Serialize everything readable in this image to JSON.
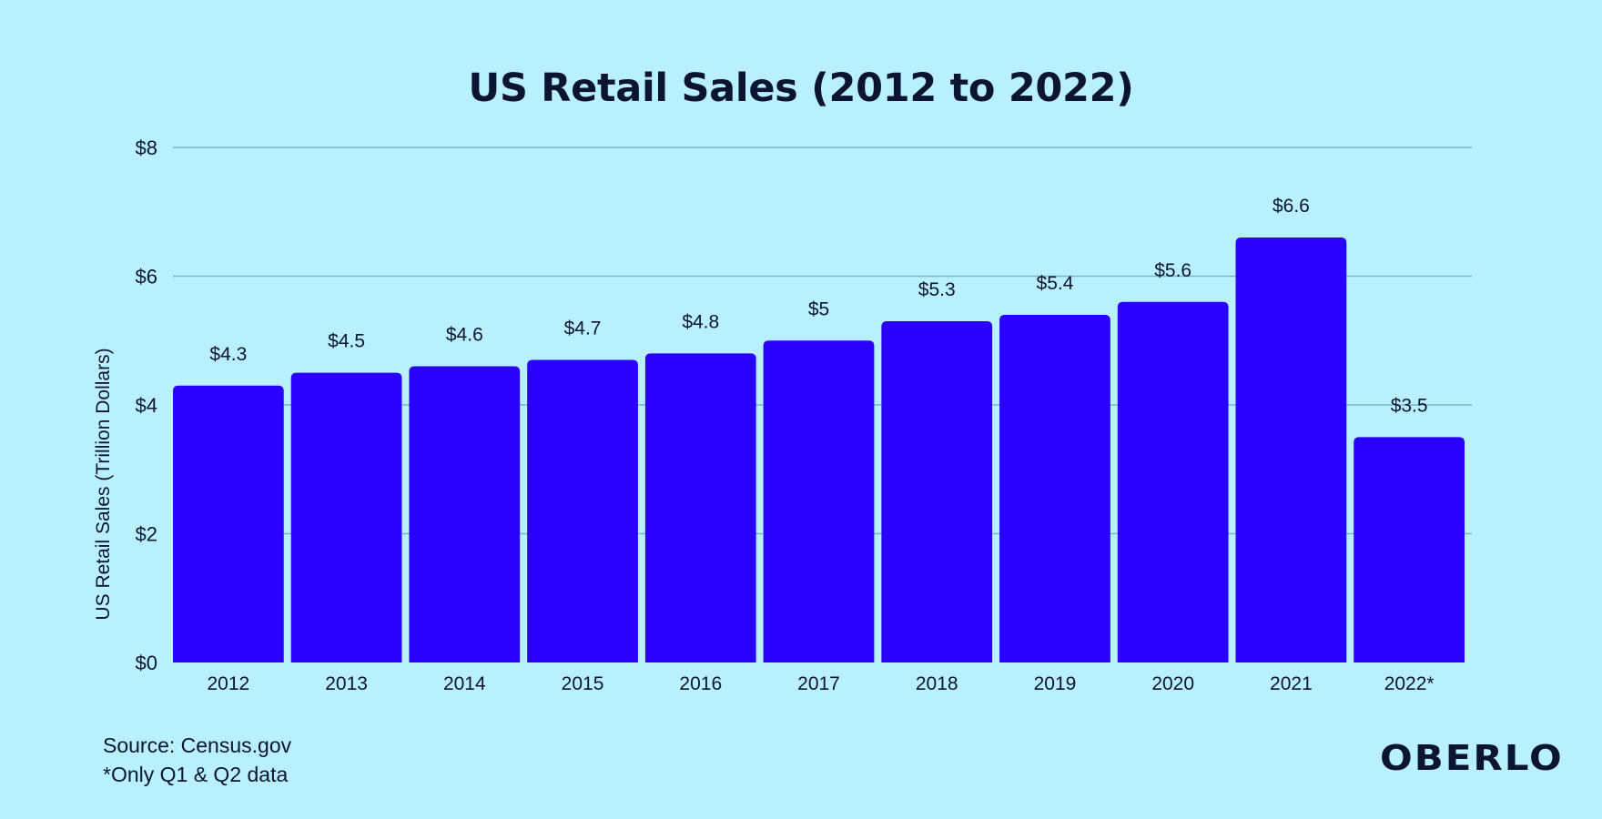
{
  "chart_data": {
    "type": "bar",
    "title": "US Retail Sales (2012 to 2022)",
    "ylabel": "US Retail Sales (Trillion Dollars)",
    "xlabel": "",
    "categories": [
      "2012",
      "2013",
      "2014",
      "2015",
      "2016",
      "2017",
      "2018",
      "2019",
      "2020",
      "2021",
      "2022*"
    ],
    "values": [
      4.3,
      4.5,
      4.6,
      4.7,
      4.8,
      5,
      5.3,
      5.4,
      5.6,
      6.6,
      3.5
    ],
    "data_labels": [
      "$4.3",
      "$4.5",
      "$4.6",
      "$4.7",
      "$4.8",
      "$5",
      "$5.3",
      "$5.4",
      "$5.6",
      "$6.6",
      "$3.5"
    ],
    "ylim": [
      0,
      8
    ],
    "yticks": [
      0,
      2,
      4,
      6,
      8
    ],
    "ytick_labels": [
      "$0",
      "$2",
      "$4",
      "$6",
      "$8"
    ],
    "grid": true,
    "legend": "none",
    "bar_color": "#2a00ff",
    "grid_color": "#7fb4c4"
  },
  "footer": {
    "source": "Source: Census.gov",
    "footnote": "*Only Q1 & Q2 data",
    "logo": "OBERLO"
  },
  "colors": {
    "background": "#b8f0fe",
    "text": "#0b1433"
  }
}
